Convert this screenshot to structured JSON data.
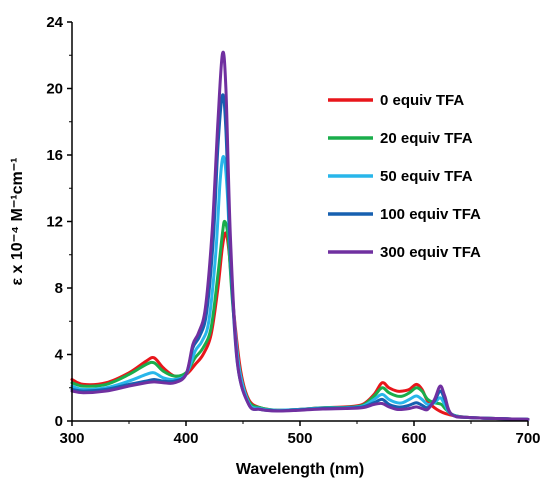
{
  "chart_data": {
    "type": "line",
    "xlabel": "Wavelength (nm)",
    "ylabel": "ε x 10⁻⁴ M⁻¹cm⁻¹",
    "xlim": [
      300,
      700
    ],
    "ylim": [
      0,
      24
    ],
    "xticks": [
      300,
      400,
      500,
      600,
      700
    ],
    "yticks": [
      0,
      4,
      8,
      12,
      16,
      20,
      24
    ],
    "grid": false,
    "legend_position": "right",
    "series": [
      {
        "name": "0 equiv TFA",
        "color": "#e8161b",
        "points": [
          [
            300,
            2.5
          ],
          [
            310,
            2.2
          ],
          [
            330,
            2.3
          ],
          [
            350,
            2.9
          ],
          [
            365,
            3.6
          ],
          [
            372,
            3.8
          ],
          [
            380,
            3.2
          ],
          [
            390,
            2.7
          ],
          [
            400,
            2.8
          ],
          [
            408,
            3.4
          ],
          [
            415,
            4.0
          ],
          [
            422,
            5.2
          ],
          [
            428,
            8.0
          ],
          [
            432,
            10.5
          ],
          [
            435,
            11.3
          ],
          [
            438,
            10.0
          ],
          [
            442,
            6.5
          ],
          [
            448,
            3.0
          ],
          [
            455,
            1.3
          ],
          [
            465,
            0.8
          ],
          [
            480,
            0.65
          ],
          [
            500,
            0.7
          ],
          [
            520,
            0.8
          ],
          [
            540,
            0.85
          ],
          [
            555,
            1.0
          ],
          [
            565,
            1.6
          ],
          [
            572,
            2.3
          ],
          [
            578,
            2.0
          ],
          [
            585,
            1.8
          ],
          [
            590,
            1.8
          ],
          [
            596,
            1.9
          ],
          [
            602,
            2.2
          ],
          [
            607,
            1.9
          ],
          [
            612,
            1.2
          ],
          [
            620,
            0.7
          ],
          [
            630,
            0.4
          ],
          [
            650,
            0.2
          ],
          [
            700,
            0.1
          ]
        ]
      },
      {
        "name": "20 equiv TFA",
        "color": "#1aad4b",
        "points": [
          [
            300,
            2.3
          ],
          [
            310,
            2.1
          ],
          [
            330,
            2.2
          ],
          [
            350,
            2.8
          ],
          [
            365,
            3.4
          ],
          [
            372,
            3.5
          ],
          [
            380,
            3.0
          ],
          [
            390,
            2.7
          ],
          [
            400,
            2.9
          ],
          [
            408,
            3.8
          ],
          [
            415,
            4.4
          ],
          [
            422,
            5.6
          ],
          [
            428,
            8.8
          ],
          [
            432,
            11.3
          ],
          [
            434,
            12.0
          ],
          [
            437,
            11.0
          ],
          [
            441,
            7.0
          ],
          [
            447,
            3.1
          ],
          [
            455,
            1.2
          ],
          [
            465,
            0.8
          ],
          [
            480,
            0.65
          ],
          [
            500,
            0.7
          ],
          [
            520,
            0.8
          ],
          [
            540,
            0.82
          ],
          [
            555,
            0.95
          ],
          [
            565,
            1.5
          ],
          [
            572,
            2.0
          ],
          [
            578,
            1.7
          ],
          [
            585,
            1.5
          ],
          [
            590,
            1.5
          ],
          [
            596,
            1.7
          ],
          [
            602,
            2.0
          ],
          [
            607,
            1.8
          ],
          [
            612,
            1.3
          ],
          [
            618,
            1.1
          ],
          [
            624,
            1.0
          ],
          [
            628,
            0.7
          ],
          [
            635,
            0.35
          ],
          [
            650,
            0.2
          ],
          [
            700,
            0.1
          ]
        ]
      },
      {
        "name": "50 equiv TFA",
        "color": "#28b6ea",
        "points": [
          [
            300,
            2.1
          ],
          [
            310,
            1.9
          ],
          [
            330,
            2.0
          ],
          [
            350,
            2.4
          ],
          [
            365,
            2.8
          ],
          [
            372,
            2.9
          ],
          [
            380,
            2.6
          ],
          [
            390,
            2.5
          ],
          [
            400,
            2.8
          ],
          [
            408,
            4.2
          ],
          [
            414,
            4.8
          ],
          [
            420,
            6.0
          ],
          [
            426,
            10.0
          ],
          [
            430,
            14.5
          ],
          [
            433,
            15.9
          ],
          [
            436,
            14.0
          ],
          [
            440,
            8.5
          ],
          [
            446,
            3.5
          ],
          [
            455,
            1.1
          ],
          [
            465,
            0.75
          ],
          [
            480,
            0.65
          ],
          [
            500,
            0.7
          ],
          [
            520,
            0.78
          ],
          [
            540,
            0.8
          ],
          [
            555,
            0.9
          ],
          [
            565,
            1.3
          ],
          [
            572,
            1.6
          ],
          [
            578,
            1.3
          ],
          [
            585,
            1.1
          ],
          [
            590,
            1.1
          ],
          [
            596,
            1.3
          ],
          [
            602,
            1.5
          ],
          [
            607,
            1.3
          ],
          [
            612,
            1.0
          ],
          [
            618,
            1.1
          ],
          [
            623,
            1.4
          ],
          [
            627,
            1.0
          ],
          [
            633,
            0.4
          ],
          [
            650,
            0.2
          ],
          [
            700,
            0.1
          ]
        ]
      },
      {
        "name": "100 equiv TFA",
        "color": "#1760b0",
        "points": [
          [
            300,
            1.9
          ],
          [
            310,
            1.8
          ],
          [
            330,
            1.9
          ],
          [
            350,
            2.2
          ],
          [
            365,
            2.4
          ],
          [
            372,
            2.5
          ],
          [
            380,
            2.4
          ],
          [
            390,
            2.4
          ],
          [
            400,
            2.8
          ],
          [
            406,
            4.4
          ],
          [
            412,
            5.1
          ],
          [
            418,
            6.5
          ],
          [
            424,
            11.0
          ],
          [
            428,
            16.5
          ],
          [
            432,
            19.6
          ],
          [
            435,
            17.5
          ],
          [
            439,
            10.0
          ],
          [
            445,
            3.5
          ],
          [
            455,
            1.0
          ],
          [
            465,
            0.7
          ],
          [
            480,
            0.62
          ],
          [
            500,
            0.68
          ],
          [
            520,
            0.75
          ],
          [
            540,
            0.78
          ],
          [
            555,
            0.85
          ],
          [
            565,
            1.1
          ],
          [
            572,
            1.3
          ],
          [
            578,
            1.0
          ],
          [
            585,
            0.85
          ],
          [
            590,
            0.85
          ],
          [
            596,
            0.95
          ],
          [
            602,
            1.1
          ],
          [
            607,
            0.95
          ],
          [
            612,
            0.8
          ],
          [
            618,
            1.2
          ],
          [
            623,
            1.8
          ],
          [
            627,
            1.3
          ],
          [
            633,
            0.4
          ],
          [
            650,
            0.2
          ],
          [
            700,
            0.1
          ]
        ]
      },
      {
        "name": "300 equiv TFA",
        "color": "#7030a0",
        "points": [
          [
            300,
            1.8
          ],
          [
            310,
            1.7
          ],
          [
            330,
            1.8
          ],
          [
            350,
            2.1
          ],
          [
            365,
            2.3
          ],
          [
            372,
            2.35
          ],
          [
            380,
            2.3
          ],
          [
            390,
            2.3
          ],
          [
            400,
            2.8
          ],
          [
            406,
            4.6
          ],
          [
            411,
            5.3
          ],
          [
            417,
            6.8
          ],
          [
            423,
            11.5
          ],
          [
            428,
            18.0
          ],
          [
            432,
            22.1
          ],
          [
            435,
            20.0
          ],
          [
            439,
            11.0
          ],
          [
            445,
            3.6
          ],
          [
            455,
            1.0
          ],
          [
            465,
            0.7
          ],
          [
            480,
            0.6
          ],
          [
            500,
            0.65
          ],
          [
            520,
            0.72
          ],
          [
            540,
            0.75
          ],
          [
            555,
            0.8
          ],
          [
            565,
            1.0
          ],
          [
            572,
            1.05
          ],
          [
            578,
            0.85
          ],
          [
            585,
            0.7
          ],
          [
            590,
            0.7
          ],
          [
            596,
            0.75
          ],
          [
            602,
            0.85
          ],
          [
            607,
            0.75
          ],
          [
            612,
            0.7
          ],
          [
            618,
            1.3
          ],
          [
            623,
            2.1
          ],
          [
            627,
            1.5
          ],
          [
            633,
            0.4
          ],
          [
            650,
            0.2
          ],
          [
            700,
            0.1
          ]
        ]
      }
    ]
  }
}
